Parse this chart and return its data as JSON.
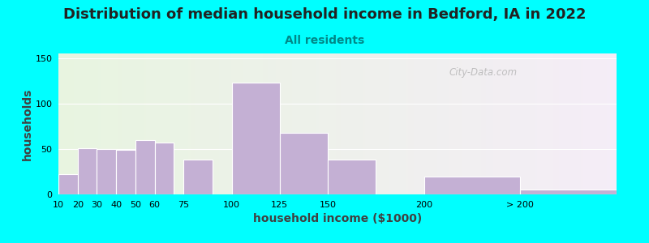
{
  "title": "Distribution of median household income in Bedford, IA in 2022",
  "subtitle": "All residents",
  "xlabel": "household income ($1000)",
  "ylabel": "households",
  "background_outer": "#00FFFF",
  "bar_color": "#C4B0D4",
  "bar_edgecolor": "#FFFFFF",
  "bar_values": [
    22,
    51,
    50,
    49,
    60,
    57,
    38,
    123,
    68,
    38,
    20,
    5
  ],
  "bar_lefts": [
    10,
    20,
    30,
    40,
    50,
    60,
    75,
    100,
    125,
    150,
    200,
    250
  ],
  "bar_widths": [
    10,
    10,
    10,
    10,
    10,
    10,
    15,
    25,
    25,
    25,
    50,
    50
  ],
  "xtick_positions": [
    10,
    20,
    30,
    40,
    50,
    60,
    75,
    100,
    125,
    150,
    200,
    250
  ],
  "xtick_labels": [
    "10",
    "20",
    "30",
    "40",
    "50",
    "60",
    "75",
    "100",
    "125",
    "150",
    "200",
    "> 200"
  ],
  "ylim": [
    0,
    155
  ],
  "yticks": [
    0,
    50,
    100,
    150
  ],
  "watermark": "City-Data.com",
  "title_fontsize": 13,
  "subtitle_fontsize": 10,
  "axis_label_fontsize": 10,
  "tick_fontsize": 8,
  "xlim_left": 10,
  "xlim_right": 300
}
